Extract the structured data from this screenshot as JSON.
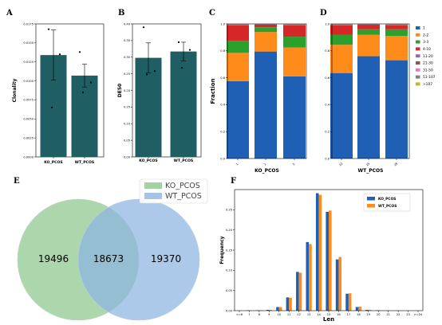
{
  "panels": {
    "A": "A",
    "B": "B",
    "C": "C",
    "D": "D",
    "E": "E",
    "F": "F"
  },
  "colors": {
    "teal_bar": "#1f5f63",
    "ko_venn": "#8cc88c",
    "wt_venn": "#8db4e0",
    "ko_len": "#1f5fb4",
    "wt_len": "#ff8c1a"
  },
  "chart_data": [
    {
      "id": "A",
      "type": "bar",
      "categories": [
        "KO_PCOS",
        "WT_PCOS"
      ],
      "values": [
        0.0134,
        0.0107
      ],
      "errors": [
        0.0033,
        0.0015
      ],
      "points": [
        [
          0.0168,
          0.0135,
          0.0065
        ],
        [
          0.0138,
          0.0098,
          0.0085
        ]
      ],
      "ylabel": "Clonality",
      "ylim": [
        0,
        0.0175
      ],
      "yticks": [
        "0.0000",
        "0.0025",
        "0.0050",
        "0.0075",
        "0.0100",
        "0.0125",
        "0.0150",
        "0.0175"
      ],
      "ytick_values": [
        0,
        0.0025,
        0.005,
        0.0075,
        0.01,
        0.0125,
        0.015,
        0.0175
      ]
    },
    {
      "id": "B",
      "type": "bar",
      "categories": [
        "KO_PCOS",
        "WT_PCOS"
      ],
      "values": [
        0.298,
        0.317
      ],
      "errors": [
        0.045,
        0.028
      ],
      "points": [
        [
          0.39,
          0.258,
          0.248
        ],
        [
          0.345,
          0.322,
          0.268
        ]
      ],
      "ylabel": "DE50",
      "ylim": [
        0,
        0.4
      ],
      "yticks": [
        "0.00",
        "0.05",
        "0.10",
        "0.15",
        "0.20",
        "0.25",
        "0.30",
        "0.35",
        "0.40"
      ],
      "ytick_values": [
        0,
        0.05,
        0.1,
        0.15,
        0.2,
        0.25,
        0.3,
        0.35,
        0.4
      ]
    },
    {
      "id": "C",
      "type": "bar",
      "stacked": true,
      "categories": [
        "1",
        "2",
        "3"
      ],
      "xlabel": "KO_PCOS",
      "ylabel": "Fraction",
      "ylim": [
        0,
        1
      ],
      "yticks": [
        "0.0",
        "0.2",
        "0.4",
        "0.6",
        "0.8",
        "1.0"
      ],
      "ytick_values": [
        0,
        0.2,
        0.4,
        0.6,
        0.8,
        1
      ],
      "series": [
        {
          "name": "1",
          "color": "#1f5fb4",
          "values": [
            0.575,
            0.795,
            0.61
          ]
        },
        {
          "name": "2-2",
          "color": "#ff8c1a",
          "values": [
            0.21,
            0.145,
            0.215
          ]
        },
        {
          "name": "3-3",
          "color": "#2ca02c",
          "values": [
            0.09,
            0.035,
            0.08
          ]
        },
        {
          "name": "4-10",
          "color": "#d62728",
          "values": [
            0.115,
            0.02,
            0.085
          ]
        },
        {
          "name": "11-20",
          "color": "#9467bd",
          "values": [
            0.004,
            0.002,
            0.004
          ]
        },
        {
          "name": "21-30",
          "color": "#8c564b",
          "values": [
            0.002,
            0.001,
            0.002
          ]
        },
        {
          "name": "31-50",
          "color": "#e377c2",
          "values": [
            0.002,
            0.001,
            0.002
          ]
        },
        {
          "name": "51-107",
          "color": "#7f7f7f",
          "values": [
            0.001,
            0.0005,
            0.001
          ]
        },
        {
          "name": ">107",
          "color": "#bcbd22",
          "values": [
            0.001,
            0.0005,
            0.001
          ]
        }
      ]
    },
    {
      "id": "D",
      "type": "bar",
      "stacked": true,
      "categories": [
        "22",
        "25",
        "28"
      ],
      "xlabel": "WT_PCOS",
      "ylim": [
        0,
        1
      ],
      "yticks": [
        "0.0",
        "0.2",
        "0.4",
        "0.6",
        "0.8",
        "1.0"
      ],
      "ytick_values": [
        0,
        0.2,
        0.4,
        0.6,
        0.8,
        1
      ],
      "legend": "right",
      "series": [
        {
          "name": "1",
          "color": "#1f5fb4",
          "values": [
            0.635,
            0.76,
            0.73
          ]
        },
        {
          "name": "2-2",
          "color": "#ff8c1a",
          "values": [
            0.21,
            0.16,
            0.18
          ]
        },
        {
          "name": "3-3",
          "color": "#2ca02c",
          "values": [
            0.075,
            0.04,
            0.05
          ]
        },
        {
          "name": "4-10",
          "color": "#d62728",
          "values": [
            0.07,
            0.034,
            0.03
          ]
        },
        {
          "name": "11-20",
          "color": "#9467bd",
          "values": [
            0.004,
            0.002,
            0.004
          ]
        },
        {
          "name": "21-30",
          "color": "#8c564b",
          "values": [
            0.002,
            0.001,
            0.002
          ]
        },
        {
          "name": "31-50",
          "color": "#e377c2",
          "values": [
            0.002,
            0.001,
            0.002
          ]
        },
        {
          "name": "51-107",
          "color": "#7f7f7f",
          "values": [
            0.001,
            0.001,
            0.001
          ]
        },
        {
          "name": ">107",
          "color": "#bcbd22",
          "values": [
            0.001,
            0.001,
            0.001
          ]
        }
      ]
    },
    {
      "id": "E",
      "type": "venn",
      "sets": [
        {
          "name": "KO_PCOS",
          "color": "#8cc88c"
        },
        {
          "name": "WT_PCOS",
          "color": "#8db4e0"
        }
      ],
      "only_a": "19496",
      "intersection": "18673",
      "only_b": "19370",
      "legend": "top-right"
    },
    {
      "id": "F",
      "type": "bar",
      "xlabel": "Len",
      "ylabel": "Frequency",
      "ylim": [
        0,
        0.3
      ],
      "yticks": [
        "0.00",
        "0.05",
        "0.10",
        "0.15",
        "0.20",
        "0.25"
      ],
      "ytick_values": [
        0,
        0.05,
        0.1,
        0.15,
        0.2,
        0.25
      ],
      "categories": [
        "<=6",
        "7",
        "8",
        "9",
        "10",
        "11",
        "12",
        "13",
        "14",
        "15",
        "16",
        "17",
        "18",
        "19",
        "20",
        "21",
        "22",
        "23",
        ">=24"
      ],
      "legend": "top-right",
      "series": [
        {
          "name": "KO_PCOS",
          "color": "#1f5fb4",
          "values": [
            0,
            0.001,
            0.001,
            0.002,
            0.009,
            0.033,
            0.096,
            0.17,
            0.291,
            0.245,
            0.127,
            0.042,
            0.009,
            0.002,
            0.001,
            0.0005,
            0.0003,
            0.0002,
            0.0002
          ]
        },
        {
          "name": "WT_PCOS",
          "color": "#ff8c1a",
          "values": [
            0,
            0.001,
            0.001,
            0.002,
            0.009,
            0.032,
            0.094,
            0.165,
            0.287,
            0.248,
            0.133,
            0.043,
            0.01,
            0.002,
            0.001,
            0.0005,
            0.0003,
            0.0002,
            0.0002
          ]
        }
      ]
    }
  ]
}
